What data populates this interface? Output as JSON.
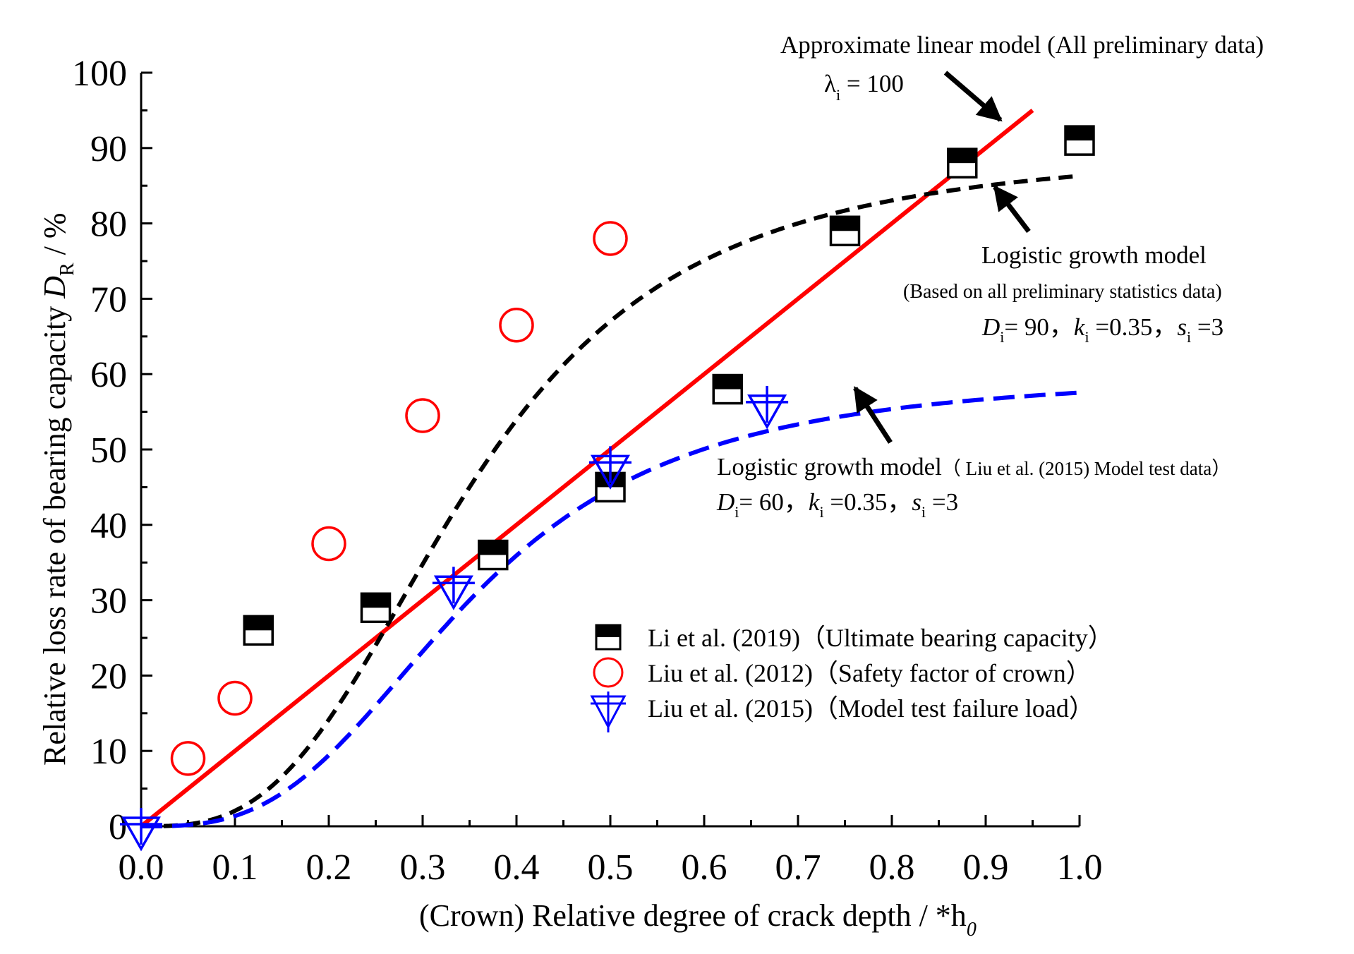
{
  "chart_data": {
    "type": "scatter",
    "xlabel": "(Crown) Relative degree of crack depth / *h",
    "xlabel_sub": "0",
    "ylabel": "Relative loss rate of bearing capacity ",
    "ylabel_var": "D",
    "ylabel_sub": "R",
    "ylabel_unit": " / %",
    "xlim": [
      0,
      1.0
    ],
    "ylim": [
      0,
      100
    ],
    "x_ticks": [
      "0.0",
      "0.1",
      "0.2",
      "0.3",
      "0.4",
      "0.5",
      "0.6",
      "0.7",
      "0.8",
      "0.9",
      "1.0"
    ],
    "y_ticks": [
      "0",
      "10",
      "20",
      "30",
      "40",
      "50",
      "60",
      "70",
      "80",
      "90",
      "100"
    ],
    "series": [
      {
        "name": "Li et al. (2019)（Ultimate bearing capacity）",
        "marker": "half-filled-square",
        "color": "#000000",
        "points": [
          [
            0.125,
            26
          ],
          [
            0.25,
            29
          ],
          [
            0.375,
            36
          ],
          [
            0.5,
            45
          ],
          [
            0.625,
            58
          ],
          [
            0.75,
            79
          ],
          [
            0.875,
            88
          ],
          [
            1.0,
            91
          ]
        ]
      },
      {
        "name": "Liu et al. (2012)（Safety factor of crown）",
        "marker": "open-circle",
        "color": "#ff0000",
        "points": [
          [
            0.05,
            9
          ],
          [
            0.1,
            17
          ],
          [
            0.2,
            37.5
          ],
          [
            0.3,
            54.5
          ],
          [
            0.4,
            66.5
          ],
          [
            0.5,
            78
          ]
        ]
      },
      {
        "name": "Liu et al. (2015)（Model test failure load）",
        "marker": "down-triangle-plus",
        "color": "#0000ff",
        "points": [
          [
            0,
            0
          ],
          [
            0.333,
            32
          ],
          [
            0.5,
            48
          ],
          [
            0.667,
            56
          ]
        ]
      }
    ],
    "curves": [
      {
        "id": "linear",
        "style": "solid",
        "color": "#ff0000",
        "points": [
          [
            0,
            0
          ],
          [
            0.95,
            95
          ]
        ]
      },
      {
        "id": "logistic-all",
        "style": "dashed",
        "color": "#000000",
        "D": 90,
        "k": 0.35,
        "s": 3
      },
      {
        "id": "logistic-liu2015",
        "style": "dashed",
        "color": "#0000ff",
        "D": 60,
        "k": 0.35,
        "s": 3
      }
    ],
    "annotations": {
      "linear_title": "Approximate linear model (All preliminary data)",
      "linear_lambda": "λ",
      "linear_lambda_sub": "i",
      "linear_lambda_val": " = 100",
      "log_all_title": "Logistic growth model",
      "log_all_sub": "(Based on all preliminary statistics data)",
      "log_all_D": "D",
      "log_all_D_val": "= 90，",
      "log_all_k": "k",
      "log_all_k_val": " =0.35，",
      "log_all_s": "s",
      "log_all_s_val": " =3",
      "log_blue_title": "Logistic growth model",
      "log_blue_title_small": "（ Liu et al. (2015) Model test data）",
      "log_blue_D": "D",
      "log_blue_D_val": "= 60，",
      "log_blue_k": "k",
      "log_blue_k_val": " =0.35，",
      "log_blue_s": "s",
      "log_blue_s_val": " =3",
      "param_sub": "i"
    }
  }
}
